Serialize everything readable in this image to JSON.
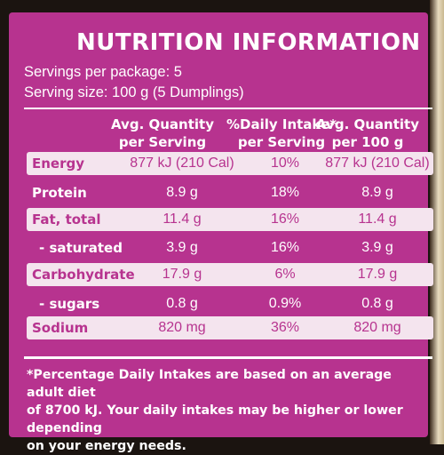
{
  "title": "NUTRITION INFORMATION",
  "servings_per_package": "Servings per package: 5",
  "serving_size": "Serving size: 100 g (5 Dumplings)",
  "columns": {
    "qty_per_serving": [
      "Avg. Quantity",
      "per Serving"
    ],
    "daily_intake": [
      "%Daily Intake*",
      "per Serving"
    ],
    "qty_per_100g": [
      "Avg. Quantity",
      "per 100 g"
    ]
  },
  "rows": [
    {
      "name": "Energy",
      "per_serving": "877 kJ (210 Cal)",
      "daily": "10%",
      "per_100g": "877 kJ (210 Cal)"
    },
    {
      "name": "Protein",
      "per_serving": "8.9 g",
      "daily": "18%",
      "per_100g": "8.9 g"
    },
    {
      "name": "Fat, total",
      "per_serving": "11.4 g",
      "daily": "16%",
      "per_100g": "11.4 g"
    },
    {
      "name": "- saturated",
      "per_serving": "3.9 g",
      "daily": "16%",
      "per_100g": "3.9 g"
    },
    {
      "name": "Carbohydrate",
      "per_serving": "17.9 g",
      "daily": "6%",
      "per_100g": "17.9 g"
    },
    {
      "name": "- sugars",
      "per_serving": "0.8 g",
      "daily": "0.9%",
      "per_100g": "0.8 g"
    },
    {
      "name": "Sodium",
      "per_serving": "820 mg",
      "daily": "36%",
      "per_100g": "820 mg"
    }
  ],
  "footnote": [
    "*Percentage Daily Intakes are based on an average adult diet",
    "of 8700 kJ. Your daily intakes may be higher or lower depending",
    "on your energy needs."
  ],
  "colors": {
    "panel": "#b7338f",
    "shaded_row": "#f4e4ee",
    "text_light": "#ffffff"
  }
}
